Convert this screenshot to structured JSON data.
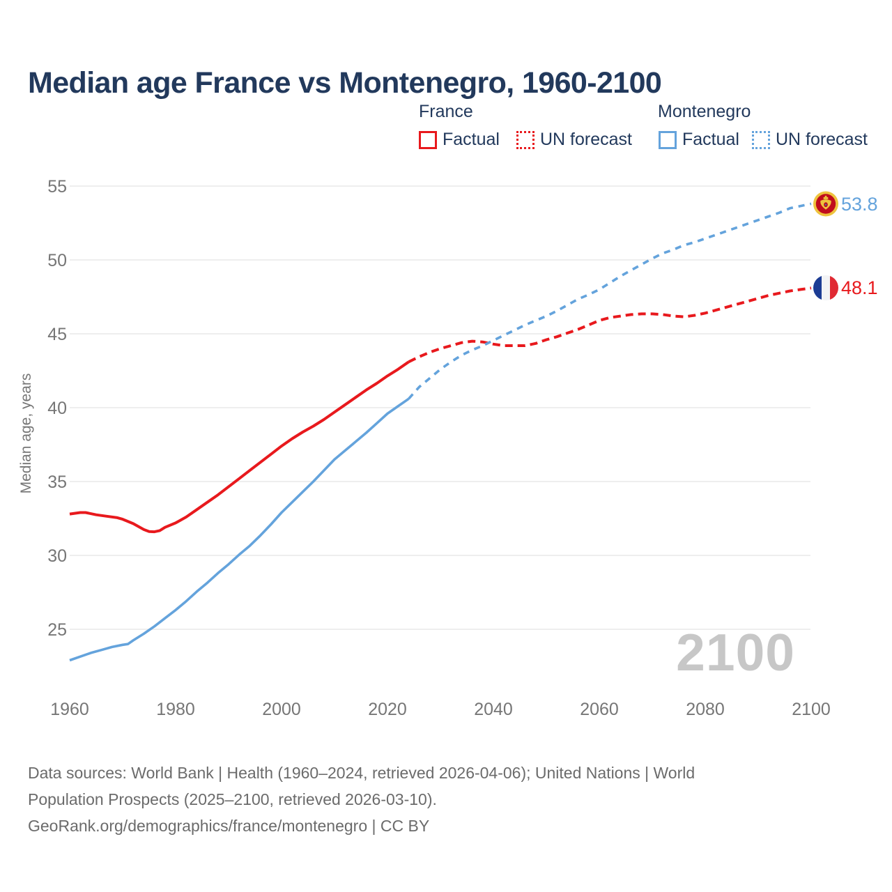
{
  "title": "Median age France vs Montenegro, 1960-2100",
  "legend": {
    "france_header": "France",
    "montenegro_header": "Montenegro",
    "france_factual": "Factual",
    "france_forecast": "UN forecast",
    "montenegro_factual": "Factual",
    "montenegro_forecast": "UN forecast"
  },
  "colors": {
    "france": "#e8191d",
    "montenegro": "#64a3dc",
    "title_text": "#22395c",
    "axis_text": "#767676",
    "gridline": "#e9e9e9",
    "watermark": "#c7c7c7",
    "footer_text": "#6b6b6b"
  },
  "watermark_year": "2100",
  "end_labels": {
    "montenegro_value": "53.8",
    "france_value": "48.1"
  },
  "footer": {
    "line1": "Data sources: World Bank | Health (1960–2024, retrieved 2026-04-06); United Nations | World",
    "line2": "Population Prospects (2025–2100, retrieved 2026-03-10).",
    "line3": "GeoRank.org/demographics/france/montenegro | CC BY"
  },
  "chart_data": {
    "type": "line",
    "title": "Median age France vs Montenegro, 1960-2100",
    "xlabel": "",
    "ylabel": "Median age, years",
    "xlim": [
      1960,
      2100
    ],
    "ylim": [
      22,
      56
    ],
    "x_ticks": [
      1960,
      1980,
      2000,
      2020,
      2040,
      2060,
      2080,
      2100
    ],
    "y_ticks": [
      55,
      50,
      45,
      40,
      35,
      30,
      25
    ],
    "grid": "horizontal",
    "legend_position": "top",
    "end_values": {
      "france_2100": 48.1,
      "montenegro_2100": 53.8
    },
    "series": [
      {
        "name": "France Factual",
        "style": "solid",
        "color": "#e8191d",
        "width": 4,
        "points": [
          [
            1960,
            32.8
          ],
          [
            1962,
            32.9
          ],
          [
            1963,
            32.9
          ],
          [
            1965,
            32.75
          ],
          [
            1967,
            32.65
          ],
          [
            1969,
            32.55
          ],
          [
            1970,
            32.45
          ],
          [
            1972,
            32.15
          ],
          [
            1974,
            31.75
          ],
          [
            1975,
            31.62
          ],
          [
            1976,
            31.6
          ],
          [
            1977,
            31.68
          ],
          [
            1978,
            31.9
          ],
          [
            1980,
            32.2
          ],
          [
            1982,
            32.6
          ],
          [
            1984,
            33.1
          ],
          [
            1986,
            33.6
          ],
          [
            1988,
            34.1
          ],
          [
            1990,
            34.65
          ],
          [
            1992,
            35.2
          ],
          [
            1994,
            35.75
          ],
          [
            1996,
            36.3
          ],
          [
            1998,
            36.85
          ],
          [
            2000,
            37.4
          ],
          [
            2002,
            37.9
          ],
          [
            2004,
            38.35
          ],
          [
            2006,
            38.75
          ],
          [
            2008,
            39.2
          ],
          [
            2010,
            39.7
          ],
          [
            2012,
            40.2
          ],
          [
            2014,
            40.7
          ],
          [
            2016,
            41.2
          ],
          [
            2018,
            41.65
          ],
          [
            2020,
            42.15
          ],
          [
            2022,
            42.6
          ],
          [
            2024,
            43.1
          ]
        ]
      },
      {
        "name": "France UN forecast",
        "style": "dashed",
        "color": "#e8191d",
        "width": 4,
        "points": [
          [
            2024,
            43.1
          ],
          [
            2026,
            43.45
          ],
          [
            2028,
            43.75
          ],
          [
            2030,
            44.0
          ],
          [
            2032,
            44.2
          ],
          [
            2034,
            44.4
          ],
          [
            2036,
            44.5
          ],
          [
            2038,
            44.45
          ],
          [
            2040,
            44.3
          ],
          [
            2042,
            44.2
          ],
          [
            2044,
            44.2
          ],
          [
            2046,
            44.2
          ],
          [
            2048,
            44.35
          ],
          [
            2050,
            44.6
          ],
          [
            2052,
            44.8
          ],
          [
            2054,
            45.05
          ],
          [
            2056,
            45.3
          ],
          [
            2058,
            45.6
          ],
          [
            2060,
            45.9
          ],
          [
            2062,
            46.1
          ],
          [
            2064,
            46.2
          ],
          [
            2066,
            46.3
          ],
          [
            2068,
            46.35
          ],
          [
            2070,
            46.35
          ],
          [
            2072,
            46.3
          ],
          [
            2074,
            46.2
          ],
          [
            2076,
            46.15
          ],
          [
            2078,
            46.25
          ],
          [
            2080,
            46.4
          ],
          [
            2082,
            46.6
          ],
          [
            2084,
            46.8
          ],
          [
            2086,
            47.0
          ],
          [
            2088,
            47.2
          ],
          [
            2090,
            47.4
          ],
          [
            2092,
            47.6
          ],
          [
            2094,
            47.75
          ],
          [
            2096,
            47.9
          ],
          [
            2098,
            48.0
          ],
          [
            2100,
            48.1
          ]
        ]
      },
      {
        "name": "Montenegro Factual",
        "style": "solid",
        "color": "#64a3dc",
        "width": 3.6,
        "points": [
          [
            1960,
            22.9
          ],
          [
            1962,
            23.15
          ],
          [
            1964,
            23.4
          ],
          [
            1966,
            23.6
          ],
          [
            1968,
            23.8
          ],
          [
            1970,
            23.95
          ],
          [
            1971,
            24.0
          ],
          [
            1972,
            24.25
          ],
          [
            1974,
            24.7
          ],
          [
            1976,
            25.2
          ],
          [
            1978,
            25.75
          ],
          [
            1980,
            26.3
          ],
          [
            1982,
            26.9
          ],
          [
            1984,
            27.55
          ],
          [
            1986,
            28.15
          ],
          [
            1988,
            28.8
          ],
          [
            1990,
            29.4
          ],
          [
            1992,
            30.05
          ],
          [
            1994,
            30.65
          ],
          [
            1996,
            31.35
          ],
          [
            1998,
            32.1
          ],
          [
            2000,
            32.9
          ],
          [
            2002,
            33.6
          ],
          [
            2004,
            34.3
          ],
          [
            2006,
            35.0
          ],
          [
            2008,
            35.75
          ],
          [
            2010,
            36.5
          ],
          [
            2012,
            37.1
          ],
          [
            2014,
            37.7
          ],
          [
            2016,
            38.3
          ],
          [
            2018,
            38.95
          ],
          [
            2020,
            39.6
          ],
          [
            2022,
            40.1
          ],
          [
            2024,
            40.6
          ]
        ]
      },
      {
        "name": "Montenegro UN forecast",
        "style": "dashed",
        "color": "#64a3dc",
        "width": 3.6,
        "points": [
          [
            2024,
            40.6
          ],
          [
            2025,
            41.0
          ],
          [
            2026,
            41.4
          ],
          [
            2028,
            42.0
          ],
          [
            2030,
            42.6
          ],
          [
            2032,
            43.1
          ],
          [
            2034,
            43.55
          ],
          [
            2036,
            43.9
          ],
          [
            2038,
            44.2
          ],
          [
            2040,
            44.55
          ],
          [
            2042,
            44.9
          ],
          [
            2044,
            45.25
          ],
          [
            2046,
            45.6
          ],
          [
            2048,
            45.9
          ],
          [
            2050,
            46.2
          ],
          [
            2052,
            46.55
          ],
          [
            2054,
            46.95
          ],
          [
            2056,
            47.35
          ],
          [
            2058,
            47.65
          ],
          [
            2060,
            48.0
          ],
          [
            2062,
            48.45
          ],
          [
            2064,
            48.9
          ],
          [
            2066,
            49.3
          ],
          [
            2068,
            49.7
          ],
          [
            2070,
            50.1
          ],
          [
            2072,
            50.45
          ],
          [
            2074,
            50.7
          ],
          [
            2076,
            51.0
          ],
          [
            2078,
            51.2
          ],
          [
            2080,
            51.45
          ],
          [
            2082,
            51.7
          ],
          [
            2084,
            51.95
          ],
          [
            2086,
            52.2
          ],
          [
            2088,
            52.45
          ],
          [
            2090,
            52.7
          ],
          [
            2092,
            52.95
          ],
          [
            2094,
            53.2
          ],
          [
            2096,
            53.5
          ],
          [
            2098,
            53.65
          ],
          [
            2100,
            53.8
          ]
        ]
      }
    ]
  }
}
